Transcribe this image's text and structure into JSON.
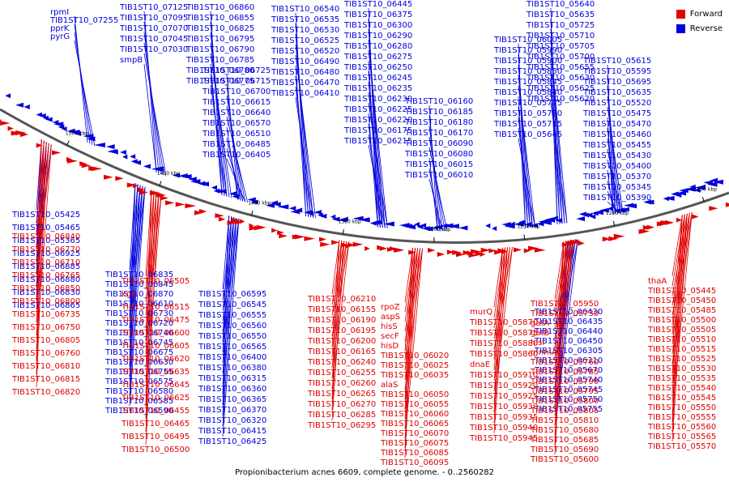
{
  "colors": {
    "forward": "#e00000",
    "reverse": "#0000dd",
    "backbone": "#555555"
  },
  "legend": {
    "forward": "Forward",
    "reverse": "Reverse"
  },
  "caption": "Propionibacterium acnes 6609, complete genome. - 0..2560282",
  "ticks": [
    "1500 kbp",
    "1450 kbp",
    "1400 kbp",
    "1350 kbp",
    "1300 kbp",
    "1250 kbp",
    "1200 kbp",
    "1150 kbp"
  ],
  "reverse_labels": [
    "rpmI",
    "TIB1ST10_07255",
    "pprK",
    "pyrG",
    "TIB1ST10_07125",
    "TIB1ST10_07095",
    "TIB1ST10_07070",
    "TIB1ST10_07045",
    "TIB1ST10_07030",
    "smpB",
    "TIB1ST10_06860",
    "TIB1ST10_06855",
    "TIB1ST10_06825",
    "TIB1ST10_06795",
    "TIB1ST10_06790",
    "TIB1ST10_06785",
    "TIB1ST10_06780",
    "TIB1ST10_06775",
    "TIB1ST10_06725",
    "TIB1ST10_06715",
    "TIB1ST10_06700",
    "TIB1ST10_06615",
    "TIB1ST10_06640",
    "TIB1ST10_06570",
    "TIB1ST10_06510",
    "TIB1ST10_06485",
    "TIB1ST10_06405",
    "TIB1ST10_06540",
    "TIB1ST10_06535",
    "TIB1ST10_06530",
    "TIB1ST10_06525",
    "TIB1ST10_06520",
    "TIB1ST10_06490",
    "TIB1ST10_06480",
    "TIB1ST10_06470",
    "TIB1ST10_06410",
    "TIB1ST10_06445",
    "TIB1ST10_06375",
    "TIB1ST10_06300",
    "TIB1ST10_06290",
    "TIB1ST10_06280",
    "TIB1ST10_06275",
    "TIB1ST10_06250",
    "TIB1ST10_06245",
    "TIB1ST10_06235",
    "TIB1ST10_06230",
    "TIB1ST10_06225",
    "TIB1ST10_06220",
    "TIB1ST10_06175",
    "TIB1ST10_06215",
    "TIB1ST10_06160",
    "TIB1ST10_06185",
    "TIB1ST10_06180",
    "TIB1ST10_06170",
    "TIB1ST10_06090",
    "TIB1ST10_06080",
    "TIB1ST10_06015",
    "TIB1ST10_06010",
    "TIB1ST10_06005",
    "TIB1ST10_05990",
    "TIB1ST10_05900",
    "TIB1ST10_05850",
    "TIB1ST10_05845",
    "TIB1ST10_05840",
    "TIB1ST10_05775",
    "TIB1ST10_05720",
    "TIB1ST10_05715",
    "TIB1ST10_05645",
    "TIB1ST10_05640",
    "TIB1ST10_05635",
    "TIB1ST10_05725",
    "TIB1ST10_05710",
    "TIB1ST10_05705",
    "TIB1ST10_05700",
    "TIB1ST10_05655",
    "TIB1ST10_05630",
    "TIB1ST10_05625",
    "TIB1ST10_05620",
    "TIB1ST10_05615",
    "TIB1ST10_05595",
    "TIB1ST10_05695",
    "TIB1ST10_05635",
    "TIB1ST10_05520",
    "TIB1ST10_05475",
    "TIB1ST10_05470",
    "TIB1ST10_05460",
    "TIB1ST10_05455",
    "TIB1ST10_05430",
    "TIB1ST10_05400",
    "TIB1ST10_05370",
    "TIB1ST10_05345",
    "TIB1ST10_05390",
    "TIB1ST10_05425",
    "TIB1ST10_05465",
    "TIB1ST10_05365",
    "TIB1ST10_06925",
    "TIB1ST10_06885",
    "TIB1ST10_06880",
    "TIB1ST10_06830",
    "TIB1ST10_06865",
    "TIB1ST10_06835",
    "TIB1ST10_06845",
    "TIB1ST10_06870",
    "TIB1ST10_06610",
    "TIB1ST10_06730",
    "TIB1ST10_06720",
    "TIB1ST10_06740",
    "TIB1ST10_06745",
    "TIB1ST10_06675",
    "TIB1ST10_06630",
    "TIB1ST10_06755",
    "TIB1ST10_06575",
    "TIB1ST10_06580",
    "TIB1ST10_06585",
    "TIB1ST10_06590",
    "TIB1ST10_06595",
    "TIB1ST10_06545",
    "TIB1ST10_06555",
    "TIB1ST10_06560",
    "TIB1ST10_06550",
    "TIB1ST10_06565",
    "TIB1ST10_06400",
    "TIB1ST10_06380",
    "TIB1ST10_06315",
    "TIB1ST10_06360",
    "TIB1ST10_06365",
    "TIB1ST10_06370",
    "TIB1ST10_06320",
    "TIB1ST10_06415",
    "TIB1ST10_06425",
    "TIB1ST10_06430",
    "TIB1ST10_06435",
    "TIB1ST10_06440",
    "TIB1ST10_06450",
    "TIB1ST10_06305",
    "TIB1ST10_06310",
    "TIB1ST10_05670",
    "TIB1ST10_05740",
    "TIB1ST10_05745",
    "TIB1ST10_05750",
    "TIB1ST10_05755"
  ],
  "forward_labels": [
    "TIB1ST10_06840",
    "TIB1ST10_06770",
    "TIB1ST10_06710",
    "TIB1ST10_06765",
    "TIB1ST10_06850",
    "TIB1ST10_06800",
    "TIB1ST10_06735",
    "TIB1ST10_06750",
    "TIB1ST10_06805",
    "TIB1ST10_06760",
    "TIB1ST10_06810",
    "TIB1ST10_06815",
    "TIB1ST10_06820",
    "TIB1ST10_06505",
    "kgd",
    "TIB1ST10_06515",
    "TIB1ST10_06475",
    "TIB1ST10_06600",
    "TIB1ST10_06605",
    "TIB1ST10_06620",
    "TIB1ST10_06635",
    "TIB1ST10_06645",
    "TIB1ST10_06625",
    "TIB1ST10_06455",
    "TIB1ST10_06465",
    "TIB1ST10_06495",
    "TIB1ST10_06500",
    "TIB1ST10_06210",
    "TIB1ST10_06155",
    "TIB1ST10_06190",
    "TIB1ST10_06195",
    "TIB1ST10_06200",
    "TIB1ST10_06165",
    "TIB1ST10_06240",
    "TIB1ST10_06255",
    "TIB1ST10_06260",
    "TIB1ST10_06265",
    "TIB1ST10_06270",
    "TIB1ST10_06285",
    "TIB1ST10_06295",
    "rpoZ",
    "aspS",
    "hisS",
    "secF",
    "hisD",
    "TIB1ST10_06020",
    "TIB1ST10_06025",
    "TIB1ST10_06035",
    "alaS",
    "TIB1ST10_06050",
    "TIB1ST10_06055",
    "TIB1ST10_06060",
    "TIB1ST10_06065",
    "TIB1ST10_06070",
    "TIB1ST10_06075",
    "TIB1ST10_06085",
    "TIB1ST10_06095",
    "murQ",
    "TIB1ST10_05870",
    "TIB1ST10_05875",
    "TIB1ST10_05880",
    "TIB1ST10_05860",
    "dnaE",
    "TIB1ST10_05910",
    "TIB1ST10_05920",
    "TIB1ST10_05925",
    "TIB1ST10_05930",
    "TIB1ST10_05935",
    "TIB1ST10_05940",
    "TIB1ST10_05945",
    "TIB1ST10_05950",
    "TIB1ST10_05730",
    "gatA",
    "gatB",
    "hisI",
    "mnmA",
    "TIB1ST10_05760",
    "TIB1ST10_05785",
    "TIB1ST10_05790",
    "TIB1ST10_05795",
    "TIB1ST10_05800",
    "TIB1ST10_05805",
    "TIB1ST10_05810",
    "TIB1ST10_05680",
    "TIB1ST10_05685",
    "TIB1ST10_05690",
    "TIB1ST10_05600",
    "thaA",
    "TIB1ST10_05445",
    "TIB1ST10_05450",
    "TIB1ST10_05485",
    "TIB1ST10_05500",
    "TIB1ST10_05505",
    "TIB1ST10_05510",
    "TIB1ST10_05515",
    "TIB1ST10_05525",
    "TIB1ST10_05530",
    "TIB1ST10_05535",
    "TIB1ST10_05540",
    "TIB1ST10_05545",
    "TIB1ST10_05550",
    "TIB1ST10_05555",
    "TIB1ST10_05560",
    "TIB1ST10_05565",
    "TIB1ST10_05570"
  ]
}
